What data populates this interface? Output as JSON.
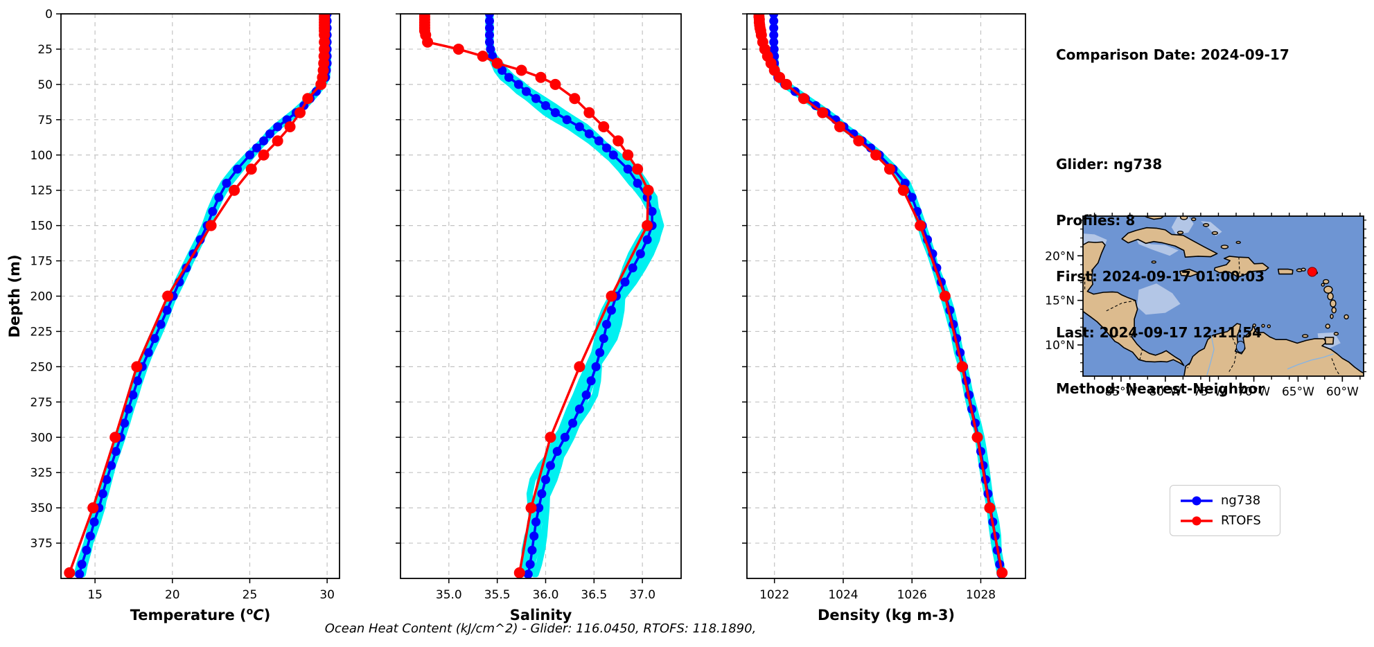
{
  "info_panel": {
    "comparison_date": "Comparison Date: 2024-09-17",
    "glider": "Glider: ng738",
    "profiles": "Profiles: 8",
    "first": "First: 2024-09-17 01:00:03",
    "last": "Last: 2024-09-17 12:11:54",
    "method": "Method: Nearest-Neighbor"
  },
  "caption": "Ocean Heat Content (kJ/cm^2) - Glider: 116.0450,  RTOFS: 118.1890,",
  "legend": {
    "items": [
      {
        "label": "ng738",
        "color": "#0000ff"
      },
      {
        "label": "RTOFS",
        "color": "#ff0000"
      }
    ]
  },
  "colors": {
    "ng738": "#0000ff",
    "rtofs": "#ff0000",
    "raw_band": "#00f0f0",
    "grid": "#c3c3c3",
    "axis": "#000000",
    "map_ocean": "#6e95d3",
    "map_shallow": "#b3c6e6",
    "map_land": "#dcbb8e",
    "map_marker": "#ff0000"
  },
  "chart_data": [
    {
      "id": "temperature",
      "type": "line",
      "xlabel": "Temperature (°C)",
      "xlabel_parts": [
        "Temperature (",
        {
          "sup": "o"
        },
        {
          "italic": "C"
        },
        ")"
      ],
      "ylabel": "Depth (m)",
      "xlim": [
        12.8,
        30.8
      ],
      "ylim": [
        0,
        400
      ],
      "y_inverted": true,
      "grid": true,
      "show_ytick_labels": true,
      "xticks": {
        "values": [
          15,
          20,
          25,
          30
        ],
        "labels": [
          "15",
          "20",
          "25",
          "30"
        ]
      },
      "yticks": {
        "values": [
          0,
          25,
          50,
          75,
          100,
          125,
          150,
          175,
          200,
          225,
          250,
          275,
          300,
          325,
          350,
          375
        ],
        "labels": [
          "0",
          "25",
          "50",
          "75",
          "100",
          "125",
          "150",
          "175",
          "200",
          "225",
          "250",
          "275",
          "300",
          "325",
          "350",
          "375"
        ]
      },
      "raw_profile_band": {
        "count": 8,
        "spread": 0.26,
        "seed": 7
      },
      "series": [
        {
          "name": "ng738",
          "color": "#0000ff",
          "marker_radius": 6.5,
          "line_width": 3.5,
          "depths": [
            0,
            5,
            10,
            15,
            20,
            25,
            30,
            35,
            40,
            45,
            50,
            55,
            60,
            65,
            70,
            75,
            80,
            85,
            90,
            95,
            100,
            110,
            120,
            130,
            140,
            150,
            160,
            170,
            180,
            190,
            200,
            210,
            220,
            230,
            240,
            250,
            260,
            270,
            280,
            290,
            300,
            310,
            320,
            330,
            340,
            350,
            360,
            370,
            380,
            390,
            397
          ],
          "values": [
            30.0,
            30.0,
            30.0,
            30.0,
            30.0,
            30.0,
            30.0,
            30.0,
            29.95,
            29.9,
            29.65,
            29.3,
            28.9,
            28.5,
            28.0,
            27.4,
            26.8,
            26.3,
            25.9,
            25.45,
            25.0,
            24.2,
            23.5,
            23.0,
            22.6,
            22.25,
            21.8,
            21.35,
            20.9,
            20.45,
            20.05,
            19.65,
            19.25,
            18.85,
            18.45,
            18.05,
            17.75,
            17.45,
            17.15,
            16.9,
            16.65,
            16.35,
            16.05,
            15.75,
            15.5,
            15.25,
            14.95,
            14.7,
            14.45,
            14.15,
            14.0
          ]
        },
        {
          "name": "RTOFS",
          "color": "#ff0000",
          "marker_radius": 8,
          "line_width": 3.5,
          "depths": [
            0,
            2,
            4,
            6,
            8,
            10,
            12,
            15,
            20,
            25,
            30,
            35,
            40,
            45,
            50,
            60,
            70,
            80,
            90,
            100,
            110,
            125,
            150,
            200,
            250,
            300,
            350,
            396
          ],
          "values": [
            29.82,
            29.82,
            29.82,
            29.82,
            29.82,
            29.82,
            29.82,
            29.82,
            29.82,
            29.82,
            29.8,
            29.78,
            29.75,
            29.7,
            29.6,
            28.75,
            28.25,
            27.6,
            26.8,
            25.9,
            25.1,
            24.0,
            22.5,
            19.7,
            17.7,
            16.3,
            14.87,
            13.35
          ]
        }
      ]
    },
    {
      "id": "salinity",
      "type": "line",
      "xlabel": "Salinity",
      "ylabel": "",
      "xlim": [
        34.5,
        37.4
      ],
      "ylim": [
        0,
        400
      ],
      "y_inverted": true,
      "grid": true,
      "show_ytick_labels": false,
      "xticks": {
        "values": [
          35.0,
          35.5,
          36.0,
          36.5,
          37.0
        ],
        "labels": [
          "35.0",
          "35.5",
          "36.0",
          "36.5",
          "37.0"
        ]
      },
      "yticks": {
        "values": [
          0,
          25,
          50,
          75,
          100,
          125,
          150,
          175,
          200,
          225,
          250,
          275,
          300,
          325,
          350,
          375
        ],
        "labels": [
          "0",
          "25",
          "50",
          "75",
          "100",
          "125",
          "150",
          "175",
          "200",
          "225",
          "250",
          "275",
          "300",
          "325",
          "350",
          "375"
        ]
      },
      "raw_profile_band": {
        "count": 8,
        "spread": 0.15,
        "seed": 11
      },
      "series": [
        {
          "name": "ng738",
          "color": "#0000ff",
          "marker_radius": 6.5,
          "line_width": 3.5,
          "depths": [
            0,
            5,
            10,
            15,
            20,
            25,
            30,
            35,
            40,
            45,
            50,
            55,
            60,
            65,
            70,
            75,
            80,
            85,
            90,
            95,
            100,
            110,
            120,
            130,
            140,
            150,
            160,
            170,
            180,
            190,
            200,
            210,
            220,
            230,
            240,
            250,
            260,
            270,
            280,
            290,
            300,
            310,
            320,
            330,
            340,
            350,
            360,
            370,
            380,
            390,
            397
          ],
          "values": [
            35.42,
            35.42,
            35.42,
            35.42,
            35.42,
            35.43,
            35.45,
            35.5,
            35.55,
            35.62,
            35.72,
            35.8,
            35.9,
            36.0,
            36.1,
            36.22,
            36.35,
            36.45,
            36.55,
            36.63,
            36.7,
            36.85,
            36.95,
            37.05,
            37.1,
            37.1,
            37.05,
            36.98,
            36.9,
            36.82,
            36.73,
            36.68,
            36.63,
            36.6,
            36.56,
            36.52,
            36.47,
            36.42,
            36.35,
            36.28,
            36.2,
            36.12,
            36.05,
            36.0,
            35.96,
            35.93,
            35.9,
            35.88,
            35.86,
            35.84,
            35.82
          ]
        },
        {
          "name": "RTOFS",
          "color": "#ff0000",
          "marker_radius": 8,
          "line_width": 3.5,
          "depths": [
            0,
            2,
            4,
            6,
            8,
            10,
            12,
            15,
            20,
            25,
            30,
            35,
            40,
            45,
            50,
            60,
            70,
            80,
            90,
            100,
            110,
            125,
            150,
            200,
            250,
            300,
            350,
            396
          ],
          "values": [
            34.75,
            34.75,
            34.75,
            34.75,
            34.75,
            34.75,
            34.75,
            34.76,
            34.78,
            35.1,
            35.35,
            35.5,
            35.75,
            35.95,
            36.1,
            36.3,
            36.45,
            36.6,
            36.75,
            36.85,
            36.95,
            37.06,
            37.05,
            36.68,
            36.35,
            36.05,
            35.85,
            35.73
          ]
        }
      ]
    },
    {
      "id": "density",
      "type": "line",
      "xlabel": "Density (kg m-3)",
      "ylabel": "",
      "xlim": [
        1021.2,
        1029.3
      ],
      "ylim": [
        0,
        400
      ],
      "y_inverted": true,
      "grid": true,
      "show_ytick_labels": false,
      "xticks": {
        "values": [
          1022,
          1024,
          1026,
          1028
        ],
        "labels": [
          "1022",
          "1024",
          "1026",
          "1028"
        ]
      },
      "yticks": {
        "values": [
          0,
          25,
          50,
          75,
          100,
          125,
          150,
          175,
          200,
          225,
          250,
          275,
          300,
          325,
          350,
          375
        ],
        "labels": [
          "0",
          "25",
          "50",
          "75",
          "100",
          "125",
          "150",
          "175",
          "200",
          "225",
          "250",
          "275",
          "300",
          "325",
          "350",
          "375"
        ]
      },
      "raw_profile_band": {
        "count": 8,
        "spread": 0.13,
        "seed": 13
      },
      "series": [
        {
          "name": "ng738",
          "color": "#0000ff",
          "marker_radius": 6.5,
          "line_width": 3.5,
          "depths": [
            0,
            5,
            10,
            15,
            20,
            25,
            30,
            35,
            40,
            45,
            50,
            55,
            60,
            65,
            70,
            75,
            80,
            85,
            90,
            95,
            100,
            110,
            120,
            130,
            140,
            150,
            160,
            170,
            180,
            190,
            200,
            210,
            220,
            230,
            240,
            250,
            260,
            270,
            280,
            290,
            300,
            310,
            320,
            330,
            340,
            350,
            360,
            370,
            380,
            390,
            397
          ],
          "values": [
            1021.98,
            1021.98,
            1021.98,
            1021.98,
            1021.98,
            1021.99,
            1022.0,
            1022.0,
            1022.02,
            1022.1,
            1022.3,
            1022.6,
            1022.9,
            1023.2,
            1023.5,
            1023.78,
            1024.02,
            1024.3,
            1024.55,
            1024.8,
            1025.05,
            1025.45,
            1025.8,
            1026.0,
            1026.15,
            1026.3,
            1026.45,
            1026.6,
            1026.72,
            1026.85,
            1026.98,
            1027.1,
            1027.2,
            1027.3,
            1027.4,
            1027.5,
            1027.58,
            1027.66,
            1027.74,
            1027.84,
            1027.93,
            1028.0,
            1028.07,
            1028.14,
            1028.21,
            1028.28,
            1028.35,
            1028.42,
            1028.48,
            1028.55,
            1028.6
          ]
        },
        {
          "name": "RTOFS",
          "color": "#ff0000",
          "marker_radius": 8,
          "line_width": 3.5,
          "depths": [
            0,
            2,
            4,
            6,
            8,
            10,
            12,
            15,
            20,
            25,
            30,
            35,
            40,
            45,
            50,
            60,
            70,
            80,
            90,
            100,
            110,
            125,
            150,
            200,
            250,
            300,
            350,
            396
          ],
          "values": [
            1021.55,
            1021.55,
            1021.56,
            1021.56,
            1021.57,
            1021.58,
            1021.6,
            1021.62,
            1021.66,
            1021.72,
            1021.8,
            1021.9,
            1022.0,
            1022.15,
            1022.35,
            1022.85,
            1023.4,
            1023.9,
            1024.45,
            1024.95,
            1025.35,
            1025.75,
            1026.24,
            1026.96,
            1027.46,
            1027.9,
            1028.26,
            1028.62
          ]
        }
      ]
    },
    {
      "id": "map",
      "type": "map",
      "extent": {
        "lon": [
          -89.3,
          -57.6
        ],
        "lat": [
          6.5,
          24.45
        ]
      },
      "xticks": {
        "values": [
          -85,
          -80,
          -75,
          -70,
          -65,
          -60
        ],
        "labels": [
          "85°W",
          "80°W",
          "75°W",
          "70°W",
          "65°W",
          "60°W"
        ]
      },
      "yticks": {
        "values": [
          20,
          15,
          10
        ],
        "labels": [
          "20°N",
          "15°N",
          "10°N"
        ]
      },
      "marker": {
        "lon": -63.4,
        "lat": 18.2,
        "color": "#ff0000"
      }
    }
  ]
}
